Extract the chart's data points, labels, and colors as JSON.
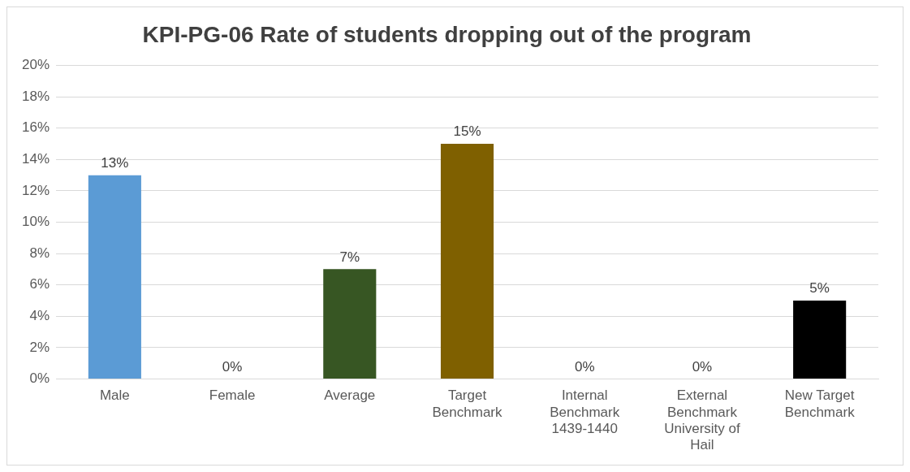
{
  "chart_data": {
    "type": "bar",
    "title": "KPI-PG-06 Rate of students dropping out of the program",
    "categories": [
      "Male",
      "Female",
      "Average",
      "Target Benchmark",
      "Internal Benchmark 1439-1440",
      "External Benchmark University of Hail",
      "New Target Benchmark"
    ],
    "values": [
      13,
      0,
      7,
      15,
      0,
      0,
      5
    ],
    "colors": [
      "#5b9bd5",
      "#a5a5a5",
      "#375623",
      "#7f6000",
      "#a5a5a5",
      "#a5a5a5",
      "#000000"
    ],
    "value_labels": [
      "13%",
      "0%",
      "7%",
      "15%",
      "0%",
      "0%",
      "5%"
    ],
    "ylim": [
      0,
      20
    ],
    "yticks": [
      {
        "value": 0,
        "label": "0%"
      },
      {
        "value": 2,
        "label": "2%"
      },
      {
        "value": 4,
        "label": "4%"
      },
      {
        "value": 6,
        "label": "6%"
      },
      {
        "value": 8,
        "label": "8%"
      },
      {
        "value": 10,
        "label": "10%"
      },
      {
        "value": 12,
        "label": "12%"
      },
      {
        "value": 14,
        "label": "14%"
      },
      {
        "value": 16,
        "label": "16%"
      },
      {
        "value": 18,
        "label": "18%"
      },
      {
        "value": 20,
        "label": "20%"
      }
    ],
    "grid": "y",
    "legend": false
  }
}
